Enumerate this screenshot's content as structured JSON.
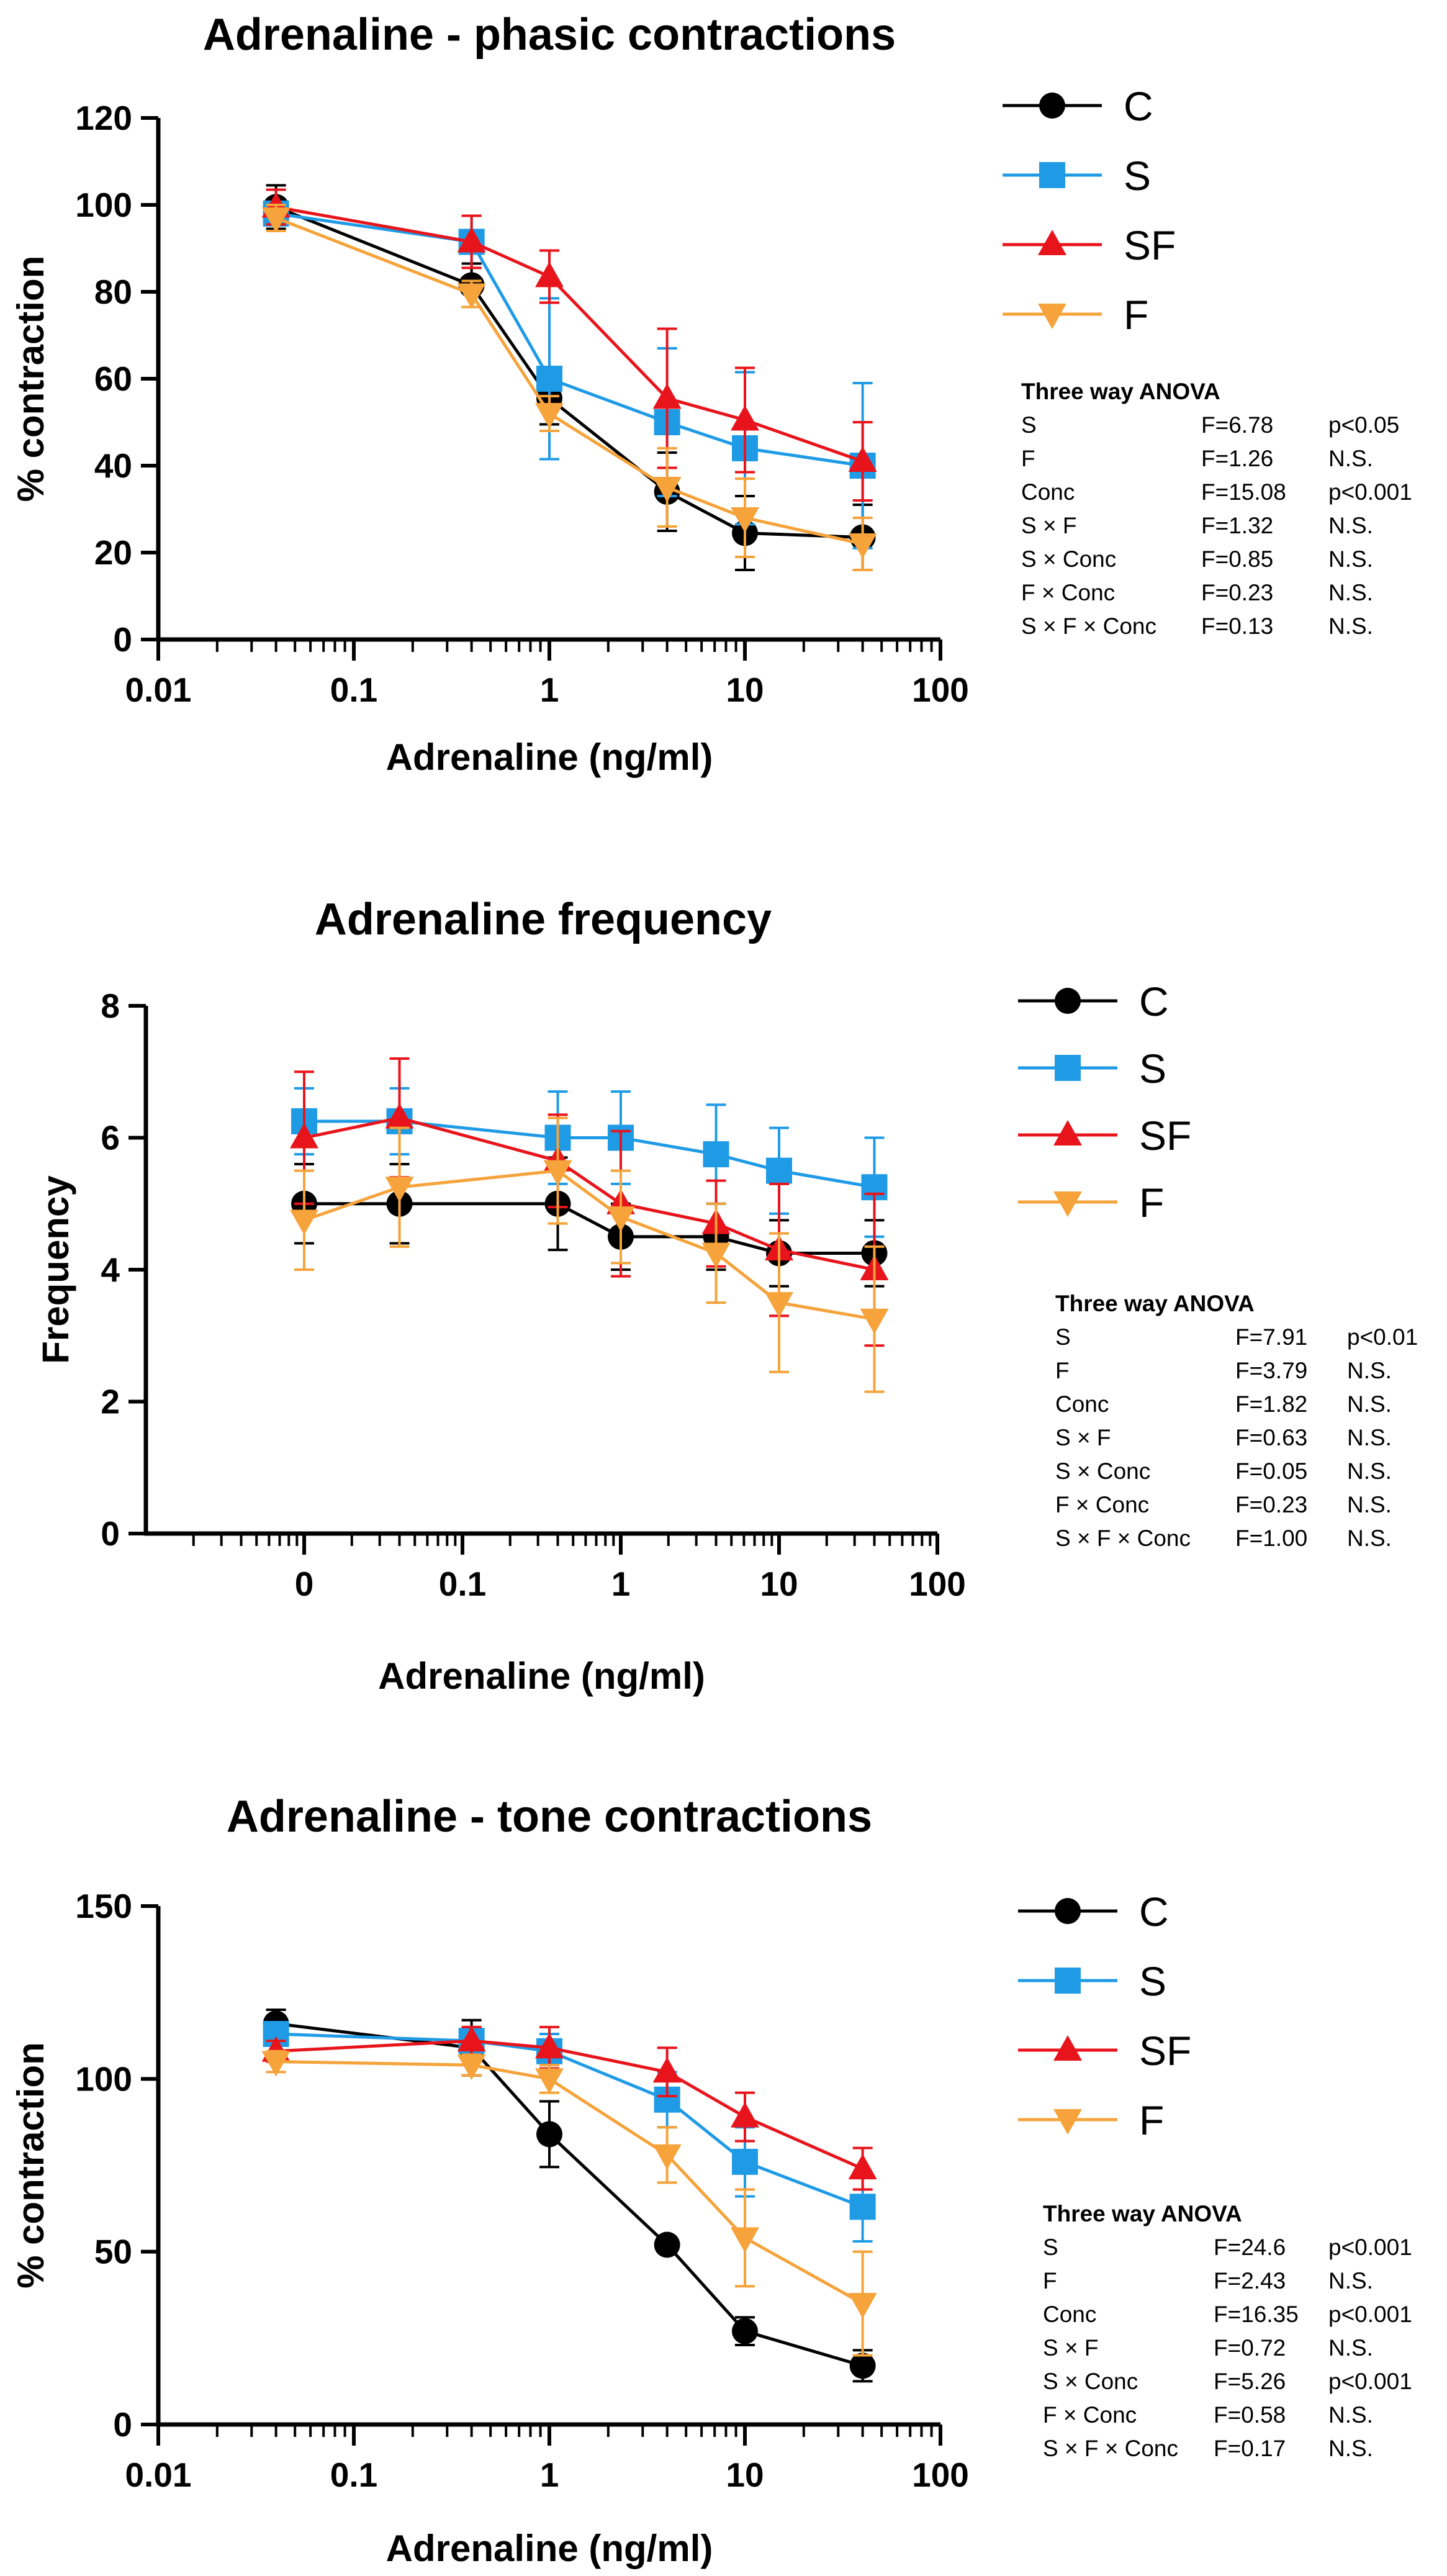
{
  "colors": {
    "C": "#000000",
    "S": "#1f9be6",
    "SF": "#e8141c",
    "F": "#f5a33a"
  },
  "chart_data": [
    {
      "type": "line",
      "title": "Adrenaline - phasic contractions",
      "xlabel": "Adrenaline (ng/ml)",
      "ylabel": "% contraction",
      "x_scale": "log",
      "xlim": [
        0.01,
        100
      ],
      "ylim": [
        0,
        120
      ],
      "x_ticks": [
        0.01,
        0.1,
        1,
        10,
        100
      ],
      "x_tick_labels": [
        "0.01",
        "0.1",
        "1",
        "10",
        "100"
      ],
      "y_ticks": [
        0,
        20,
        40,
        60,
        80,
        100,
        120
      ],
      "grid": false,
      "legend": "right",
      "x": [
        0.04,
        0.4,
        1,
        4,
        10,
        40
      ],
      "series": [
        {
          "name": "C",
          "marker": "circle",
          "values": [
            99.5,
            81.5,
            55.5,
            34,
            24.5,
            23.5
          ],
          "err": [
            5,
            5,
            6,
            9,
            8.5,
            7.5
          ]
        },
        {
          "name": "S",
          "marker": "square",
          "values": [
            98,
            91.5,
            60,
            50,
            44,
            40
          ],
          "err": [
            2.5,
            6,
            18.5,
            17,
            17.5,
            19
          ]
        },
        {
          "name": "SF",
          "marker": "triangle-up",
          "values": [
            99.5,
            91.5,
            83.5,
            55.5,
            50.5,
            41
          ],
          "err": [
            4,
            6,
            6,
            16,
            12,
            9
          ]
        },
        {
          "name": "F",
          "marker": "triangle-down",
          "values": [
            97,
            79.5,
            52,
            35,
            28,
            22
          ],
          "err": [
            3,
            3,
            4,
            9,
            9,
            6
          ]
        }
      ],
      "anova": {
        "title": "Three way ANOVA",
        "rows": [
          {
            "term": "S",
            "stat": "F=6.78",
            "sig": "p<0.05"
          },
          {
            "term": "F",
            "stat": "F=1.26",
            "sig": "N.S."
          },
          {
            "term": "Conc",
            "stat": "F=15.08",
            "sig": "p<0.001"
          },
          {
            "term": "S × F",
            "stat": "F=1.32",
            "sig": "N.S."
          },
          {
            "term": "S × Conc",
            "stat": "F=0.85",
            "sig": "N.S."
          },
          {
            "term": "F × Conc",
            "stat": "F=0.23",
            "sig": "N.S."
          },
          {
            "term": "S × F × Conc",
            "stat": "F=0.13",
            "sig": "N.S."
          }
        ]
      }
    },
    {
      "type": "line",
      "title": "Adrenaline frequency",
      "xlabel": "Adrenaline (ng/ml)",
      "ylabel": "Frequency",
      "x_scale": "log",
      "xlim": [
        0.001,
        100
      ],
      "ylim": [
        0,
        8
      ],
      "x_ticks": [
        0.01,
        0.1,
        1,
        10,
        100
      ],
      "x_tick_labels": [
        "0",
        "0.1",
        "1",
        "10",
        "100"
      ],
      "y_ticks": [
        0,
        2,
        4,
        6,
        8
      ],
      "grid": false,
      "legend": "right",
      "x": [
        0.01,
        0.04,
        0.4,
        1,
        4,
        10,
        40
      ],
      "series": [
        {
          "name": "C",
          "marker": "circle",
          "values": [
            5,
            5,
            5,
            4.5,
            4.5,
            4.25,
            4.25
          ],
          "err": [
            0.6,
            0.6,
            0.7,
            0.5,
            0.5,
            0.5,
            0.5
          ]
        },
        {
          "name": "S",
          "marker": "square",
          "values": [
            6.25,
            6.25,
            6,
            6,
            5.75,
            5.5,
            5.25
          ],
          "err": [
            0.5,
            0.5,
            0.7,
            0.7,
            0.75,
            0.65,
            0.75
          ]
        },
        {
          "name": "SF",
          "marker": "triangle-up",
          "values": [
            6,
            6.3,
            5.65,
            5,
            4.7,
            4.3,
            4
          ],
          "err": [
            1,
            0.9,
            0.7,
            1.1,
            0.65,
            1,
            1.15
          ]
        },
        {
          "name": "F",
          "marker": "triangle-down",
          "values": [
            4.75,
            5.25,
            5.5,
            4.8,
            4.25,
            3.5,
            3.25
          ],
          "err": [
            0.75,
            0.9,
            0.8,
            0.7,
            0.75,
            1.05,
            1.1
          ]
        }
      ],
      "anova": {
        "title": "Three way ANOVA",
        "rows": [
          {
            "term": "S",
            "stat": "F=7.91",
            "sig": "p<0.01"
          },
          {
            "term": "F",
            "stat": "F=3.79",
            "sig": "N.S."
          },
          {
            "term": "Conc",
            "stat": "F=1.82",
            "sig": "N.S."
          },
          {
            "term": "S × F",
            "stat": "F=0.63",
            "sig": "N.S."
          },
          {
            "term": "S × Conc",
            "stat": "F=0.05",
            "sig": "N.S."
          },
          {
            "term": "F × Conc",
            "stat": "F=0.23",
            "sig": "N.S."
          },
          {
            "term": "S × F × Conc",
            "stat": "F=1.00",
            "sig": "N.S."
          }
        ]
      }
    },
    {
      "type": "line",
      "title": "Adrenaline - tone contractions",
      "xlabel": "Adrenaline (ng/ml)",
      "ylabel": "% contraction",
      "x_scale": "log",
      "xlim": [
        0.01,
        100
      ],
      "ylim": [
        0,
        150
      ],
      "x_ticks": [
        0.01,
        0.1,
        1,
        10,
        100
      ],
      "x_tick_labels": [
        "0.01",
        "0.1",
        "1",
        "10",
        "100"
      ],
      "y_ticks": [
        0,
        50,
        100,
        150
      ],
      "grid": false,
      "legend": "right",
      "x": [
        0.04,
        0.4,
        1,
        4,
        10,
        40
      ],
      "series": [
        {
          "name": "C",
          "marker": "circle",
          "values": [
            116,
            109,
            84,
            52,
            27,
            17
          ],
          "err": [
            4,
            8,
            9.5,
            2,
            4,
            4.5
          ]
        },
        {
          "name": "S",
          "marker": "square",
          "values": [
            113,
            111,
            108,
            94,
            76,
            63
          ],
          "err": [
            3,
            4,
            5,
            8,
            10,
            10
          ]
        },
        {
          "name": "SF",
          "marker": "triangle-up",
          "values": [
            108,
            111,
            109,
            102,
            89,
            74
          ],
          "err": [
            3,
            4,
            6,
            7,
            7,
            6
          ]
        },
        {
          "name": "F",
          "marker": "triangle-down",
          "values": [
            105,
            104,
            100,
            78,
            54,
            35
          ],
          "err": [
            3,
            3,
            4,
            8,
            14,
            15
          ]
        }
      ],
      "anova": {
        "title": "Three way ANOVA",
        "rows": [
          {
            "term": "S",
            "stat": "F=24.6",
            "sig": "p<0.001"
          },
          {
            "term": "F",
            "stat": "F=2.43",
            "sig": "N.S."
          },
          {
            "term": "Conc",
            "stat": "F=16.35",
            "sig": "p<0.001"
          },
          {
            "term": "S × F",
            "stat": "F=0.72",
            "sig": "N.S."
          },
          {
            "term": "S × Conc",
            "stat": "F=5.26",
            "sig": "p<0.001"
          },
          {
            "term": "F × Conc",
            "stat": "F=0.58",
            "sig": "N.S."
          },
          {
            "term": "S × F × Conc",
            "stat": "F=0.17",
            "sig": "N.S."
          }
        ]
      }
    }
  ]
}
